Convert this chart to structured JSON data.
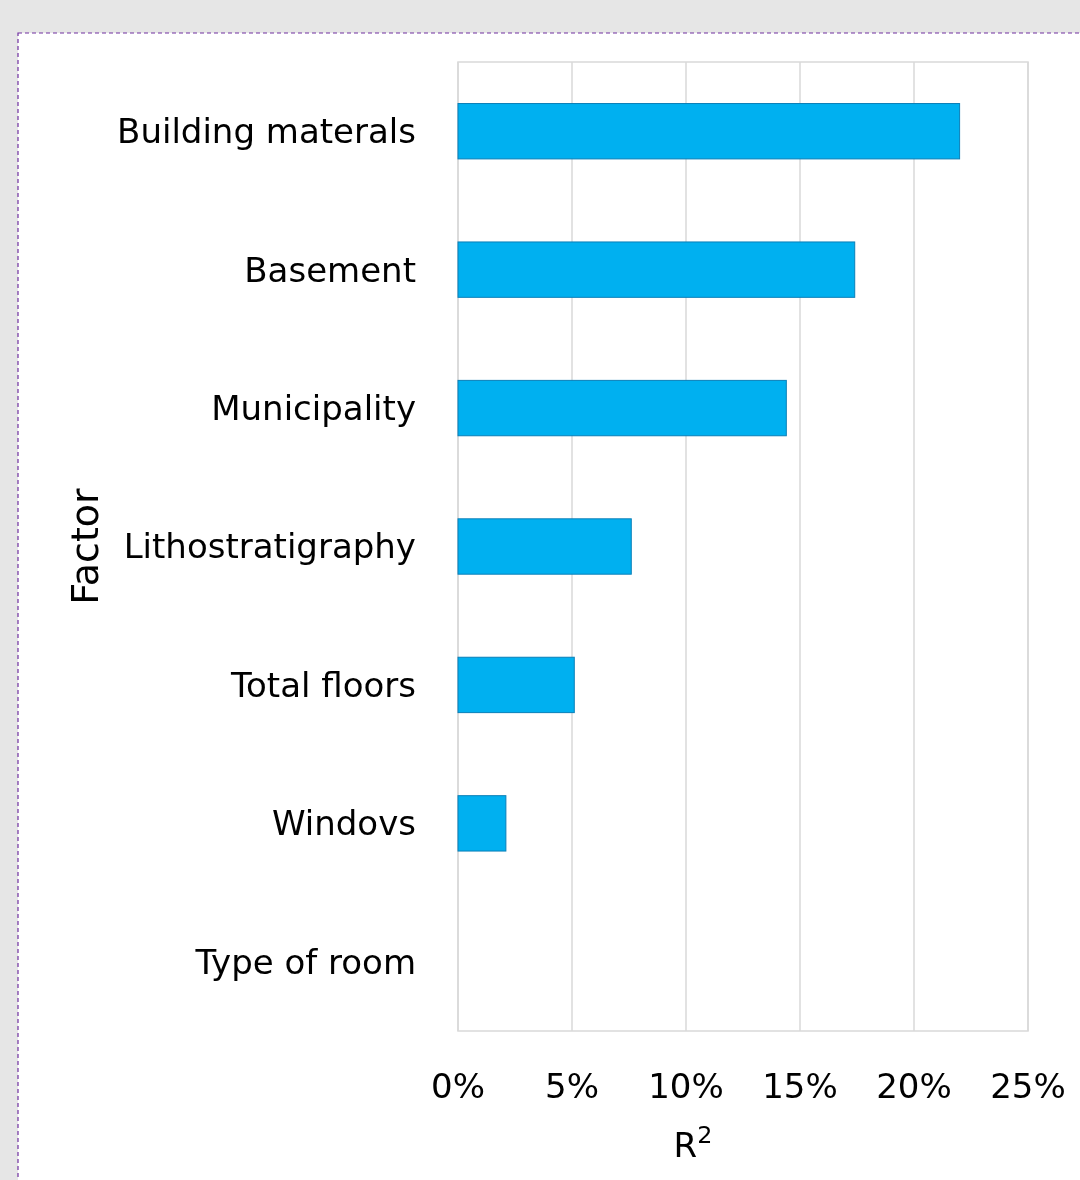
{
  "chart_data": {
    "type": "bar",
    "orientation": "horizontal",
    "xlabel": "R$^{2}$",
    "ylabel": "Factor",
    "categories": [
      "Building materals",
      "Basement",
      "Municipality",
      "Lithostratigraphy",
      "Total floors",
      "Windovs",
      "Type of room"
    ],
    "values": [
      22.0,
      17.4,
      14.4,
      7.6,
      5.1,
      2.1,
      0
    ],
    "color": "#00b0f0",
    "xlim": [
      0,
      25
    ],
    "xticks": [
      {
        "value": 0,
        "label": "0%"
      },
      {
        "value": 5,
        "label": "5%"
      },
      {
        "value": 10,
        "label": "10%"
      },
      {
        "value": 15,
        "label": "15%"
      },
      {
        "value": 20,
        "label": "20%"
      },
      {
        "value": 25,
        "label": "25%"
      }
    ],
    "grid": "x"
  }
}
